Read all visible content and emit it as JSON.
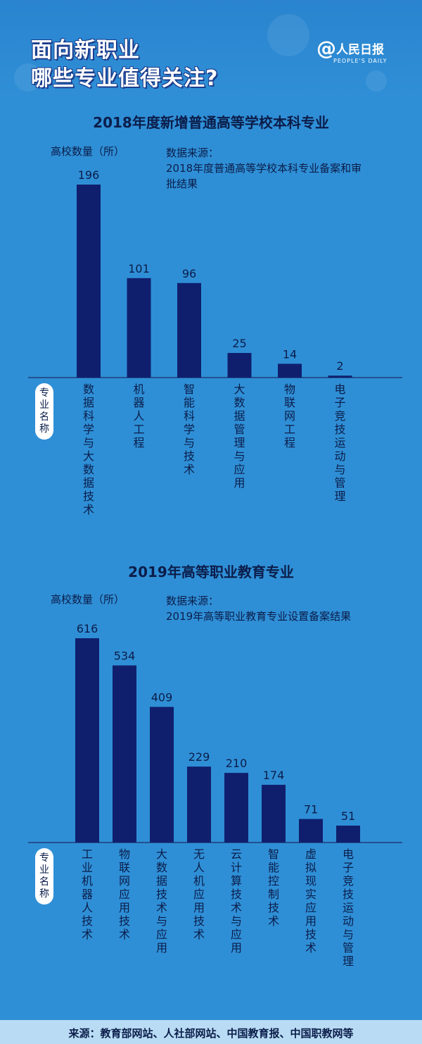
{
  "header": {
    "headline_line1": "面向新职业",
    "headline_line2": "哪些专业值得关注?",
    "brand_at": "@",
    "brand_name": "人民日报",
    "brand_sub": "PEOPLE'S DAILY"
  },
  "footer": {
    "source": "来源：教育部网站、人社部网站、中国教育报、中国职教网等"
  },
  "colors": {
    "background": "#2f8fd6",
    "bar": "#0f1f6e",
    "text": "#0b1d4a"
  },
  "chart_data": [
    {
      "type": "bar",
      "title": "2018年度新增普通高等学校本科专业",
      "ylabel": "高校数量（所）",
      "xlabel": "专业名称",
      "source_label": "数据来源：",
      "source_text": "2018年度普通高等学校本科专业备案和审批结果",
      "categories": [
        "数据科学与大数据技术",
        "机器人工程",
        "智能科学与技术",
        "大数据管理与应用",
        "物联网工程",
        "电子竞技运动与管理"
      ],
      "values": [
        196,
        101,
        96,
        25,
        14,
        2
      ],
      "ylim": [
        0,
        196
      ],
      "grid": false
    },
    {
      "type": "bar",
      "title": "2019年高等职业教育专业",
      "ylabel": "高校数量（所）",
      "xlabel": "专业名称",
      "source_label": "数据来源：",
      "source_text": "2019年高等职业教育专业设置备案结果",
      "categories": [
        "工业机器人技术",
        "物联网应用技术",
        "大数据技术与应用",
        "无人机应用技术",
        "云计算技术与应用",
        "智能控制技术",
        "虚拟现实应用技术",
        "电子竞技运动与管理"
      ],
      "values": [
        616,
        534,
        409,
        229,
        210,
        174,
        71,
        51
      ],
      "ylim": [
        0,
        616
      ],
      "grid": false
    }
  ]
}
